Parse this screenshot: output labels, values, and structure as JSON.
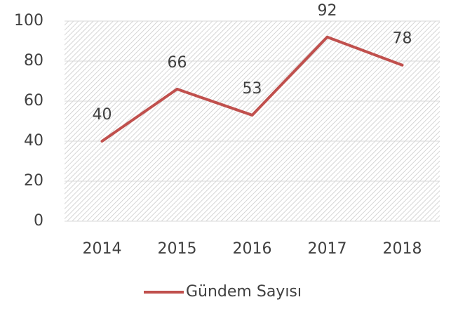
{
  "chart_data": {
    "type": "line",
    "categories": [
      "2014",
      "2015",
      "2016",
      "2017",
      "2018"
    ],
    "series": [
      {
        "name": "Gündem Sayısı",
        "color": "#c0504d",
        "values": [
          40,
          66,
          53,
          92,
          78
        ]
      }
    ],
    "ylim": [
      0,
      100
    ],
    "yticks": [
      0,
      20,
      40,
      60,
      80,
      100
    ],
    "grid": true,
    "legend": "bottom"
  }
}
